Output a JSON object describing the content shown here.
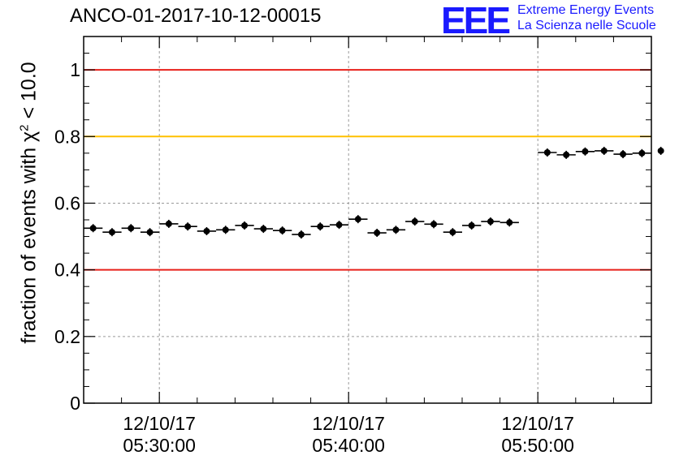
{
  "chart_data": {
    "type": "scatter",
    "title": "ANCO-01-2017-10-12-00015",
    "ylabel_prefix": "fraction of events with",
    "ylabel_symbol": "χ",
    "ylabel_sup": "2",
    "ylabel_suffix": "< 10.0",
    "ylim": [
      0,
      1.1
    ],
    "yticks": [
      {
        "v": 0,
        "label": "0"
      },
      {
        "v": 0.2,
        "label": "0.2"
      },
      {
        "v": 0.4,
        "label": "0.4"
      },
      {
        "v": 0.6,
        "label": "0.6"
      },
      {
        "v": 0.8,
        "label": "0.8"
      },
      {
        "v": 1,
        "label": "1"
      }
    ],
    "xlim": [
      "05:26:00",
      "05:56:00"
    ],
    "xticks": [
      {
        "t": "05:30:00",
        "date": "12/10/17",
        "time": "05:30:00"
      },
      {
        "t": "05:40:00",
        "date": "12/10/17",
        "time": "05:40:00"
      },
      {
        "t": "05:50:00",
        "date": "12/10/17",
        "time": "05:50:00"
      }
    ],
    "grid": true,
    "reference_lines": [
      {
        "y": 1.0,
        "color": "#e8201a"
      },
      {
        "y": 0.8,
        "color": "#ffc000"
      },
      {
        "y": 0.4,
        "color": "#e8201a"
      }
    ],
    "bin_width_minutes": 1,
    "points": [
      {
        "t": "05:26:30",
        "y": 0.525
      },
      {
        "t": "05:27:30",
        "y": 0.513
      },
      {
        "t": "05:28:30",
        "y": 0.525
      },
      {
        "t": "05:29:30",
        "y": 0.513
      },
      {
        "t": "05:30:30",
        "y": 0.538
      },
      {
        "t": "05:31:30",
        "y": 0.53
      },
      {
        "t": "05:32:30",
        "y": 0.516
      },
      {
        "t": "05:33:30",
        "y": 0.52
      },
      {
        "t": "05:34:30",
        "y": 0.533
      },
      {
        "t": "05:35:30",
        "y": 0.523
      },
      {
        "t": "05:36:30",
        "y": 0.518
      },
      {
        "t": "05:37:30",
        "y": 0.506
      },
      {
        "t": "05:38:30",
        "y": 0.53
      },
      {
        "t": "05:39:30",
        "y": 0.535
      },
      {
        "t": "05:40:30",
        "y": 0.552
      },
      {
        "t": "05:41:30",
        "y": 0.511
      },
      {
        "t": "05:42:30",
        "y": 0.52
      },
      {
        "t": "05:43:30",
        "y": 0.545
      },
      {
        "t": "05:44:30",
        "y": 0.537
      },
      {
        "t": "05:45:30",
        "y": 0.513
      },
      {
        "t": "05:46:30",
        "y": 0.533
      },
      {
        "t": "05:47:30",
        "y": 0.545
      },
      {
        "t": "05:48:30",
        "y": 0.542
      },
      {
        "t": "05:50:30",
        "y": 0.752
      },
      {
        "t": "05:51:30",
        "y": 0.745
      },
      {
        "t": "05:52:30",
        "y": 0.755
      },
      {
        "t": "05:53:30",
        "y": 0.757
      },
      {
        "t": "05:54:30",
        "y": 0.747
      },
      {
        "t": "05:55:30",
        "y": 0.75
      },
      {
        "t": "05:56:30",
        "y": 0.757
      }
    ]
  },
  "logo": {
    "mark": "EEE",
    "line1": "Extreme Energy Events",
    "line2": "La Scienza nelle Scuole",
    "color": "#1a1aff"
  }
}
